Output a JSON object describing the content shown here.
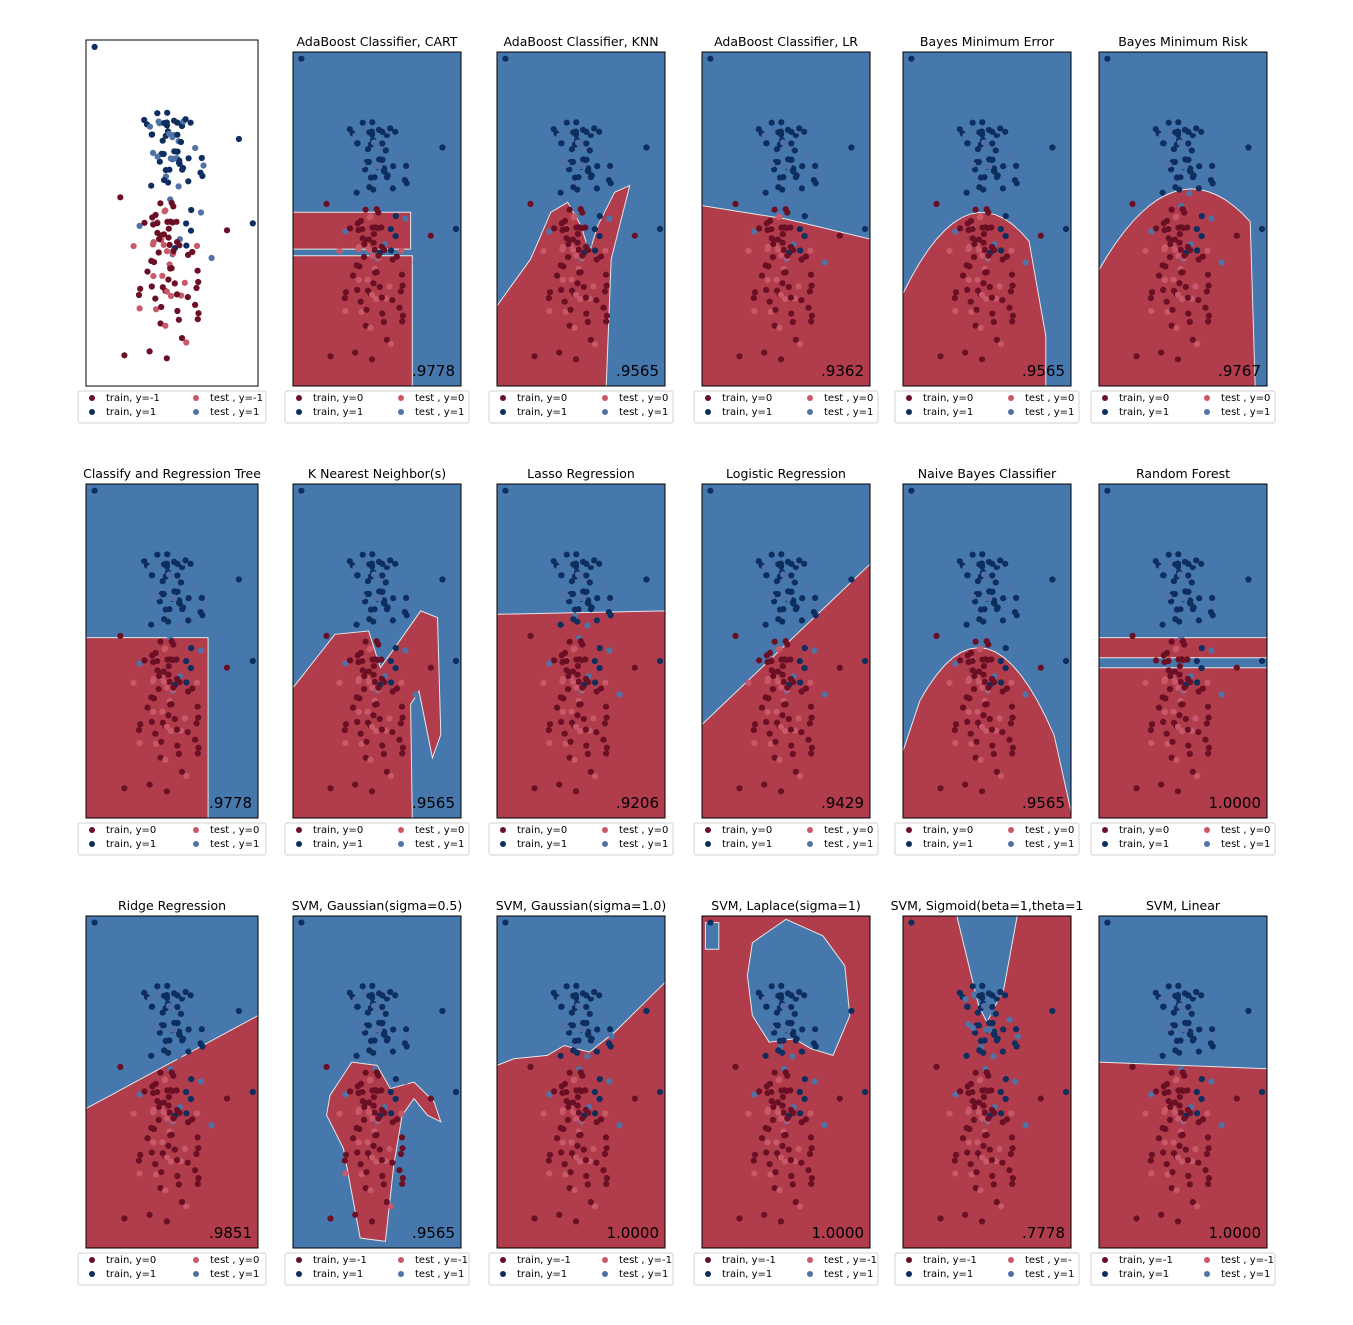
{
  "colors": {
    "red_region": "#b03c4c",
    "blue_region": "#4778ad",
    "train_neg": "#6b0f25",
    "train_pos": "#0d2e5f",
    "test_neg": "#c95868",
    "test_pos": "#4f73a6",
    "boundary": "#e6e6e6",
    "frame": "#000000"
  },
  "chart_data": [
    {
      "type": "scatter",
      "title": "",
      "score": "",
      "region": "none",
      "legend": [
        "train, y=-1",
        "train, y=1",
        "test , y=-1",
        "test , y=1"
      ],
      "xlim": [
        -2,
        2
      ],
      "ylim": [
        -2.5,
        2.5
      ]
    },
    {
      "type": "scatter",
      "title": "AdaBoost Classifier, CART",
      "score": ".9778",
      "region": "cart",
      "legend": [
        "train, y=0",
        "train, y=1",
        "test , y=0",
        "test , y=1"
      ],
      "xlim": [
        -2,
        2
      ],
      "ylim": [
        -2.5,
        2.5
      ]
    },
    {
      "type": "scatter",
      "title": "AdaBoost Classifier, KNN",
      "score": ".9565",
      "region": "knn",
      "legend": [
        "train, y=0",
        "train, y=1",
        "test , y=0",
        "test , y=1"
      ],
      "xlim": [
        -2,
        2
      ],
      "ylim": [
        -2.5,
        2.5
      ]
    },
    {
      "type": "scatter",
      "title": "AdaBoost Classifier, LR",
      "score": ".9362",
      "region": "lr_flat",
      "legend": [
        "train, y=0",
        "train, y=1",
        "test , y=0",
        "test , y=1"
      ],
      "xlim": [
        -2,
        2
      ],
      "ylim": [
        -2.5,
        2.5
      ]
    },
    {
      "type": "scatter",
      "title": "Bayes Minimum Error",
      "score": ".9565",
      "region": "parabola",
      "legend": [
        "train, y=0",
        "train, y=1",
        "test , y=0",
        "test , y=1"
      ],
      "xlim": [
        -2,
        2
      ],
      "ylim": [
        -2.5,
        2.5
      ]
    },
    {
      "type": "scatter",
      "title": "Bayes Minimum Risk",
      "score": ".9767",
      "region": "parabola_wide",
      "legend": [
        "train, y=0",
        "train, y=1",
        "test , y=0",
        "test , y=1"
      ],
      "xlim": [
        -2,
        2
      ],
      "ylim": [
        -2.5,
        2.5
      ]
    },
    {
      "type": "scatter",
      "title": "Classify and Regression Tree",
      "score": ".9778",
      "region": "tree",
      "legend": [
        "train, y=0",
        "train, y=1",
        "test , y=0",
        "test , y=1"
      ],
      "xlim": [
        -2,
        2
      ],
      "ylim": [
        -2.5,
        2.5
      ]
    },
    {
      "type": "scatter",
      "title": "K Nearest Neighbor(s)",
      "score": ".9565",
      "region": "knn2",
      "legend": [
        "train, y=0",
        "train, y=1",
        "test , y=0",
        "test , y=1"
      ],
      "xlim": [
        -2,
        2
      ],
      "ylim": [
        -2.5,
        2.5
      ]
    },
    {
      "type": "scatter",
      "title": "Lasso Regression",
      "score": ".9206",
      "region": "lasso",
      "legend": [
        "train, y=0",
        "train, y=1",
        "test , y=0",
        "test , y=1"
      ],
      "xlim": [
        -2,
        2
      ],
      "ylim": [
        -2.5,
        2.5
      ]
    },
    {
      "type": "scatter",
      "title": "Logistic Regression",
      "score": ".9429",
      "region": "diag_steep",
      "legend": [
        "train, y=0",
        "train, y=1",
        "test , y=0",
        "test , y=1"
      ],
      "xlim": [
        -2,
        2
      ],
      "ylim": [
        -2.5,
        2.5
      ]
    },
    {
      "type": "scatter",
      "title": "Naive Bayes Classifier",
      "score": ".9565",
      "region": "parabola_nb",
      "legend": [
        "train, y=0",
        "train, y=1",
        "test , y=0",
        "test , y=1"
      ],
      "xlim": [
        -2,
        2
      ],
      "ylim": [
        -2.5,
        2.5
      ]
    },
    {
      "type": "scatter",
      "title": "Random Forest",
      "score": "1.0000",
      "region": "forest",
      "legend": [
        "train, y=0",
        "train, y=1",
        "test , y=0",
        "test , y=1"
      ],
      "xlim": [
        -2,
        2
      ],
      "ylim": [
        -2.5,
        2.5
      ]
    },
    {
      "type": "scatter",
      "title": "Ridge Regression",
      "score": ".9851",
      "region": "diag_ridge",
      "legend": [
        "train, y=0",
        "train, y=1",
        "test , y=0",
        "test , y=1"
      ],
      "xlim": [
        -2,
        2
      ],
      "ylim": [
        -2.5,
        2.5
      ]
    },
    {
      "type": "scatter",
      "title": "SVM, Gaussian(sigma=0.5)",
      "score": ".9565",
      "region": "gauss05",
      "legend": [
        "train, y=-1",
        "train, y=1",
        "test , y=-1",
        "test , y=1"
      ],
      "xlim": [
        -2,
        2
      ],
      "ylim": [
        -2.5,
        2.5
      ]
    },
    {
      "type": "scatter",
      "title": "SVM, Gaussian(sigma=1.0)",
      "score": "1.0000",
      "region": "gauss10",
      "legend": [
        "train, y=-1",
        "train, y=1",
        "test , y=-1",
        "test , y=1"
      ],
      "xlim": [
        -2,
        2
      ],
      "ylim": [
        -2.5,
        2.5
      ]
    },
    {
      "type": "scatter",
      "title": "SVM, Laplace(sigma=1)",
      "score": "1.0000",
      "region": "laplace",
      "legend": [
        "train, y=-1",
        "train, y=1",
        "test , y=-1",
        "test , y=1"
      ],
      "xlim": [
        -2,
        2
      ],
      "ylim": [
        -2.5,
        2.5
      ]
    },
    {
      "type": "scatter",
      "title": "SVM, Sigmoid(beta=1,theta=1",
      "score": ".7778",
      "region": "sigmoid",
      "legend": [
        "train, y=-1",
        "train, y=1",
        "test , y=-",
        "test , y=1"
      ],
      "xlim": [
        -2,
        2
      ],
      "ylim": [
        -2.5,
        2.5
      ]
    },
    {
      "type": "scatter",
      "title": "SVM, Linear",
      "score": "1.0000",
      "region": "linear_flat",
      "legend": [
        "train, y=-1",
        "train, y=1",
        "test , y=-1",
        "test , y=1"
      ],
      "xlim": [
        -2,
        2
      ],
      "ylim": [
        -2.5,
        2.5
      ]
    }
  ]
}
